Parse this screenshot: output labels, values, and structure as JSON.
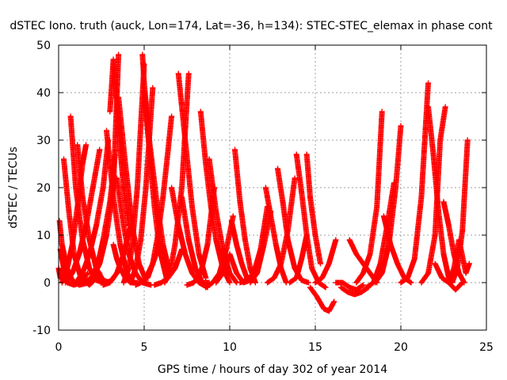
{
  "chart_data": {
    "type": "scatter",
    "title": "dSTEC Iono. truth (auck, Lon=174, Lat=-36, h=134): STEC-STEC_elemax in phase cont",
    "xlabel": "GPS time / hours of day 302 of year 2014",
    "ylabel": "dSTEC  / TECUs",
    "xlim": [
      0,
      25
    ],
    "ylim": [
      -10,
      50
    ],
    "xticks": [
      0,
      5,
      10,
      15,
      20,
      25
    ],
    "yticks": [
      -10,
      0,
      10,
      20,
      30,
      40,
      50
    ],
    "grid": true,
    "legend": "none",
    "marker": "+",
    "color": "#ff0000",
    "arcs": [
      {
        "x": [
          0.0,
          0.1,
          0.3,
          0.6
        ],
        "y": [
          3,
          1,
          0.5,
          2
        ]
      },
      {
        "x": [
          0.1,
          0.3,
          0.5,
          0.9,
          1.3,
          1.7
        ],
        "y": [
          7,
          3,
          0,
          -0.5,
          0,
          2
        ]
      },
      {
        "x": [
          0.05,
          0.2,
          0.5,
          0.8,
          1.2,
          1.8,
          2.4
        ],
        "y": [
          13,
          8,
          3,
          0.5,
          -0.5,
          0,
          2
        ]
      },
      {
        "x": [
          0.3,
          0.6,
          0.9,
          1.3,
          1.8,
          2.2
        ],
        "y": [
          26,
          15,
          6,
          1,
          -0.5,
          1
        ]
      },
      {
        "x": [
          0.7,
          1.0,
          1.4,
          1.8,
          2.2,
          2.6
        ],
        "y": [
          35,
          20,
          9,
          3,
          0.5,
          0
        ]
      },
      {
        "x": [
          0.2,
          0.5,
          0.8,
          1.1,
          1.4,
          1.6
        ],
        "y": [
          0,
          3,
          8,
          16,
          25,
          29
        ]
      },
      {
        "x": [
          0.4,
          0.8,
          1.2,
          1.6,
          2.0,
          2.4
        ],
        "y": [
          0,
          2,
          6,
          12,
          20,
          28
        ]
      },
      {
        "x": [
          1.1,
          1.4,
          1.8,
          2.2,
          2.6,
          3.0
        ],
        "y": [
          29,
          18,
          9,
          3,
          0.5,
          0
        ]
      },
      {
        "x": [
          1.0,
          1.4,
          1.8,
          2.2,
          2.6,
          2.9
        ],
        "y": [
          0,
          2,
          6,
          12,
          20,
          30
        ]
      },
      {
        "x": [
          1.5,
          1.9,
          2.3,
          2.6,
          3.0,
          3.3
        ],
        "y": [
          0,
          1,
          4,
          9,
          17,
          27
        ]
      },
      {
        "x": [
          1.6,
          2.0,
          2.4,
          2.8,
          3.2,
          3.5
        ],
        "y": [
          0,
          1,
          4,
          10,
          20,
          48
        ]
      },
      {
        "x": [
          2.8,
          3.2,
          3.6,
          4.0,
          4.4
        ],
        "y": [
          32,
          18,
          8,
          2,
          0
        ]
      },
      {
        "x": [
          3.0,
          3.2,
          3.4,
          3.6,
          3.8,
          4.1
        ],
        "y": [
          36,
          47,
          38,
          28,
          20,
          12
        ]
      },
      {
        "x": [
          3.5,
          3.9,
          4.3,
          4.7,
          5.1
        ],
        "y": [
          39,
          25,
          12,
          4,
          0.5
        ]
      },
      {
        "x": [
          3.4,
          3.6,
          3.8,
          4.1,
          4.5,
          4.9,
          5.4
        ],
        "y": [
          22,
          17,
          12,
          6,
          2,
          0,
          -0.5
        ]
      },
      {
        "x": [
          3.2,
          3.4,
          3.6,
          3.9,
          4.2,
          4.6
        ],
        "y": [
          8,
          5,
          3,
          1,
          0,
          0
        ]
      },
      {
        "x": [
          2.2,
          2.5,
          2.8,
          3.1,
          3.4
        ],
        "y": [
          3,
          1,
          0,
          0.5,
          2
        ]
      },
      {
        "x": [
          2.6,
          3.0,
          3.4,
          3.8,
          4.2
        ],
        "y": [
          -0.5,
          0,
          2,
          6,
          12
        ]
      },
      {
        "x": [
          3.8,
          4.1,
          4.3,
          4.6,
          5.0
        ],
        "y": [
          0,
          3,
          8,
          20,
          46
        ]
      },
      {
        "x": [
          4.2,
          4.5,
          4.8,
          5.1,
          5.5
        ],
        "y": [
          0,
          3,
          9,
          20,
          41
        ]
      },
      {
        "x": [
          4.9,
          5.0,
          5.3,
          5.7,
          6.1,
          6.5
        ],
        "y": [
          48,
          42,
          30,
          18,
          8,
          2
        ]
      },
      {
        "x": [
          5.0,
          5.3,
          5.6,
          5.9,
          6.3
        ],
        "y": [
          40,
          28,
          16,
          7,
          1
        ]
      },
      {
        "x": [
          4.5,
          4.8,
          5.1,
          5.5,
          5.9
        ],
        "y": [
          -0.5,
          0,
          1,
          4,
          8
        ]
      },
      {
        "x": [
          5.2,
          5.5,
          5.8,
          6.1,
          6.4,
          6.6
        ],
        "y": [
          1,
          4,
          10,
          18,
          28,
          35
        ]
      },
      {
        "x": [
          5.6,
          6.0,
          6.4,
          6.8,
          7.2
        ],
        "y": [
          -0.5,
          0,
          1,
          3,
          7
        ]
      },
      {
        "x": [
          6.2,
          6.5,
          6.8,
          7.2,
          7.6
        ],
        "y": [
          0,
          2,
          8,
          20,
          44
        ]
      },
      {
        "x": [
          6.6,
          7.0,
          7.4,
          7.8,
          8.2,
          8.7
        ],
        "y": [
          20,
          12,
          6,
          2,
          0,
          -1
        ]
      },
      {
        "x": [
          7.0,
          7.4,
          7.8,
          8.2,
          8.6
        ],
        "y": [
          44,
          30,
          16,
          6,
          1
        ]
      },
      {
        "x": [
          7.2,
          7.6,
          8.0,
          8.4,
          8.8
        ],
        "y": [
          18,
          9,
          3,
          0,
          0
        ]
      },
      {
        "x": [
          7.5,
          7.9,
          8.3,
          8.7,
          9.1
        ],
        "y": [
          -0.5,
          0,
          2,
          8,
          20
        ]
      },
      {
        "x": [
          8.3,
          8.6,
          8.9,
          9.2,
          9.6,
          10.0
        ],
        "y": [
          36,
          25,
          16,
          9,
          3,
          0
        ]
      },
      {
        "x": [
          8.8,
          9.2,
          9.6,
          10.0,
          10.4
        ],
        "y": [
          26,
          15,
          7,
          2,
          0
        ]
      },
      {
        "x": [
          8.6,
          9.0,
          9.4,
          9.8,
          10.2
        ],
        "y": [
          -1,
          0,
          2,
          7,
          14
        ]
      },
      {
        "x": [
          9.2,
          9.6,
          10.0,
          10.4,
          10.8,
          11.2
        ],
        "y": [
          0,
          2,
          6,
          2,
          0,
          0.5
        ]
      },
      {
        "x": [
          10.3,
          10.6,
          10.9,
          11.2,
          11.5
        ],
        "y": [
          28,
          17,
          9,
          3,
          0
        ]
      },
      {
        "x": [
          10.1,
          10.4,
          10.7,
          11.0
        ],
        "y": [
          13,
          8,
          4,
          1
        ]
      },
      {
        "x": [
          10.6,
          11.0,
          11.4,
          11.8,
          12.2
        ],
        "y": [
          0,
          0.5,
          2,
          7,
          16
        ]
      },
      {
        "x": [
          11.2,
          11.6,
          12.0,
          12.4
        ],
        "y": [
          0,
          2,
          8,
          15
        ]
      },
      {
        "x": [
          12.1,
          12.4,
          12.7,
          13.0,
          13.3
        ],
        "y": [
          20,
          14,
          8,
          3,
          0
        ]
      },
      {
        "x": [
          12.2,
          12.6,
          13.0,
          13.4,
          13.8
        ],
        "y": [
          0,
          1,
          4,
          11,
          22
        ]
      },
      {
        "x": [
          12.8,
          13.1,
          13.4,
          13.8,
          14.2,
          14.6
        ],
        "y": [
          24,
          17,
          9,
          3,
          0.5,
          0
        ]
      },
      {
        "x": [
          13.5,
          13.9,
          14.2,
          14.5
        ],
        "y": [
          0,
          1,
          5,
          10
        ]
      },
      {
        "x": [
          13.9,
          14.2,
          14.5,
          14.8,
          15.2,
          15.6
        ],
        "y": [
          27,
          19,
          10,
          3,
          0,
          -1
        ]
      },
      {
        "x": [
          14.5,
          14.7,
          15.0,
          15.3
        ],
        "y": [
          27,
          18,
          10,
          4
        ]
      },
      {
        "x": [
          14.7,
          15.1,
          15.5,
          15.8,
          16.1
        ],
        "y": [
          -1,
          -3,
          -5.5,
          -6,
          -4
        ]
      },
      {
        "x": [
          15.0,
          15.4,
          15.8,
          16.2
        ],
        "y": [
          0,
          1,
          4,
          9
        ]
      },
      {
        "x": [
          16.2,
          16.6,
          17.0,
          17.4,
          17.8
        ],
        "y": [
          0,
          0,
          -1,
          -1.5,
          -0.5
        ]
      },
      {
        "x": [
          16.5,
          16.9,
          17.3,
          17.7,
          18.1
        ],
        "y": [
          -1,
          -2,
          -2.5,
          -2,
          -1
        ]
      },
      {
        "x": [
          17.0,
          17.4,
          17.8,
          18.2,
          18.6
        ],
        "y": [
          9,
          6,
          4,
          2,
          0
        ]
      },
      {
        "x": [
          17.4,
          17.8,
          18.2,
          18.6,
          18.9
        ],
        "y": [
          0,
          2,
          6,
          16,
          36
        ]
      },
      {
        "x": [
          18.0,
          18.4,
          18.8,
          19.2,
          19.6
        ],
        "y": [
          -1,
          0,
          4,
          12,
          21
        ]
      },
      {
        "x": [
          18.5,
          18.9,
          19.3,
          19.7,
          20.0
        ],
        "y": [
          0,
          2,
          8,
          20,
          33
        ]
      },
      {
        "x": [
          19.0,
          19.4,
          19.8,
          20.2,
          20.6
        ],
        "y": [
          14,
          8,
          4,
          1,
          0
        ]
      },
      {
        "x": [
          20.0,
          20.4,
          20.8,
          21.2,
          21.6
        ],
        "y": [
          0,
          1,
          5,
          18,
          42
        ]
      },
      {
        "x": [
          21.2,
          21.6,
          22.0,
          22.3,
          22.6
        ],
        "y": [
          0,
          2,
          10,
          30,
          37
        ]
      },
      {
        "x": [
          21.6,
          21.9,
          22.2,
          22.5,
          22.8
        ],
        "y": [
          37,
          27,
          15,
          6,
          1
        ]
      },
      {
        "x": [
          22.0,
          22.4,
          22.8,
          23.2,
          23.6
        ],
        "y": [
          4,
          1,
          0,
          -1.5,
          0
        ]
      },
      {
        "x": [
          22.5,
          22.8,
          23.1,
          23.4,
          23.7
        ],
        "y": [
          17,
          12,
          6,
          2,
          0
        ]
      },
      {
        "x": [
          23.0,
          23.3,
          23.6,
          23.9
        ],
        "y": [
          0,
          3,
          11,
          30
        ]
      },
      {
        "x": [
          22.8,
          23.1,
          23.4,
          23.8,
          24.0
        ],
        "y": [
          0,
          3,
          9,
          2,
          4
        ]
      }
    ]
  }
}
